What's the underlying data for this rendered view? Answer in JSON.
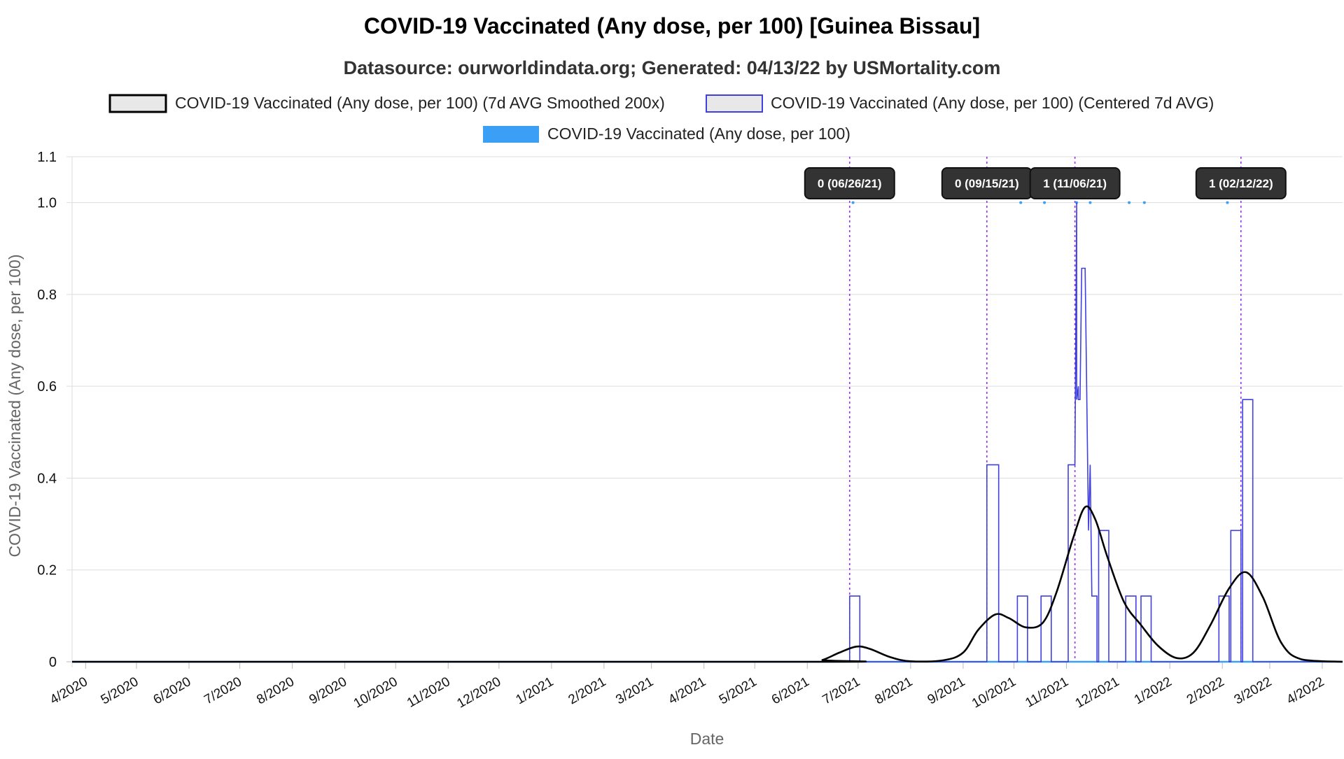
{
  "chart_data": {
    "type": "line",
    "title": "COVID-19 Vaccinated (Any dose, per 100) [Guinea Bissau]",
    "subtitle": "Datasource: ourworldindata.org; Generated: 04/13/22 by USMortality.com",
    "xlabel": "Date",
    "ylabel": "COVID-19 Vaccinated (Any dose, per 100)",
    "ylim": [
      0,
      1.1
    ],
    "yticks": [
      0,
      0.2,
      0.4,
      0.6,
      0.8,
      1.0,
      1.1
    ],
    "ytick_labels": [
      "0",
      "0.2",
      "0.4",
      "0.6",
      "0.8",
      "1.0",
      "1.1"
    ],
    "xlim": [
      "2020-03-24",
      "2022-04-13"
    ],
    "xticks": [
      "2020-04-01",
      "2020-05-01",
      "2020-06-01",
      "2020-07-01",
      "2020-08-01",
      "2020-09-01",
      "2020-10-01",
      "2020-11-01",
      "2020-12-01",
      "2021-01-01",
      "2021-02-01",
      "2021-03-01",
      "2021-04-01",
      "2021-05-01",
      "2021-06-01",
      "2021-07-01",
      "2021-08-01",
      "2021-09-01",
      "2021-10-01",
      "2021-11-01",
      "2021-12-01",
      "2022-01-01",
      "2022-02-01",
      "2022-03-01",
      "2022-04-01"
    ],
    "xtick_labels": [
      "4/2020",
      "5/2020",
      "6/2020",
      "7/2020",
      "8/2020",
      "9/2020",
      "10/2020",
      "11/2020",
      "12/2020",
      "1/2021",
      "2/2021",
      "3/2021",
      "4/2021",
      "5/2021",
      "6/2021",
      "7/2021",
      "8/2021",
      "9/2021",
      "10/2021",
      "11/2021",
      "12/2021",
      "1/2022",
      "2/2022",
      "3/2022",
      "4/2022"
    ],
    "grid": true,
    "legend_position": "top",
    "colors": {
      "smoothed": "#000000",
      "centered": "#4040e0",
      "raw": "#3a9ff5",
      "annotation": "#9b30f0"
    },
    "series": [
      {
        "name": "COVID-19 Vaccinated (Any dose, per 100) (7d AVG Smoothed 200x)",
        "style": "smooth-line",
        "points": [
          [
            "2020-03-24",
            0
          ],
          [
            "2021-06-01",
            0
          ],
          [
            "2021-06-10",
            0.004
          ],
          [
            "2021-06-20",
            0.02
          ],
          [
            "2021-06-30",
            0.033
          ],
          [
            "2021-07-08",
            0.028
          ],
          [
            "2021-07-20",
            0.01
          ],
          [
            "2021-08-01",
            0.001
          ],
          [
            "2021-08-20",
            0.003
          ],
          [
            "2021-09-01",
            0.02
          ],
          [
            "2021-09-10",
            0.07
          ],
          [
            "2021-09-20",
            0.103
          ],
          [
            "2021-09-28",
            0.095
          ],
          [
            "2021-10-08",
            0.075
          ],
          [
            "2021-10-18",
            0.085
          ],
          [
            "2021-10-26",
            0.15
          ],
          [
            "2021-11-05",
            0.27
          ],
          [
            "2021-11-12",
            0.337
          ],
          [
            "2021-11-18",
            0.31
          ],
          [
            "2021-11-25",
            0.23
          ],
          [
            "2021-12-05",
            0.13
          ],
          [
            "2021-12-15",
            0.08
          ],
          [
            "2021-12-25",
            0.035
          ],
          [
            "2022-01-05",
            0.008
          ],
          [
            "2022-01-15",
            0.02
          ],
          [
            "2022-01-25",
            0.08
          ],
          [
            "2022-02-05",
            0.16
          ],
          [
            "2022-02-15",
            0.195
          ],
          [
            "2022-02-25",
            0.14
          ],
          [
            "2022-03-08",
            0.04
          ],
          [
            "2022-03-20",
            0.005
          ],
          [
            "2022-04-13",
            0
          ]
        ]
      },
      {
        "name": "COVID-19 Vaccinated (Any dose, per 100) (Centered 7d AVG)",
        "style": "step",
        "points": [
          [
            "2020-03-24",
            0
          ],
          [
            "2021-06-26",
            0
          ],
          [
            "2021-06-26",
            0.143
          ],
          [
            "2021-07-02",
            0.143
          ],
          [
            "2021-07-02",
            0
          ],
          [
            "2021-09-15",
            0
          ],
          [
            "2021-09-15",
            0.429
          ],
          [
            "2021-09-22",
            0.429
          ],
          [
            "2021-09-22",
            0
          ],
          [
            "2021-10-03",
            0
          ],
          [
            "2021-10-03",
            0.143
          ],
          [
            "2021-10-09",
            0.143
          ],
          [
            "2021-10-09",
            0
          ],
          [
            "2021-10-17",
            0
          ],
          [
            "2021-10-17",
            0.143
          ],
          [
            "2021-10-23",
            0.143
          ],
          [
            "2021-10-23",
            0
          ],
          [
            "2021-11-02",
            0
          ],
          [
            "2021-11-02",
            0.429
          ],
          [
            "2021-11-06",
            0.429
          ],
          [
            "2021-11-07",
            1.0
          ],
          [
            "2021-11-07",
            0.571
          ],
          [
            "2021-11-08",
            0.6
          ],
          [
            "2021-11-08",
            0.571
          ],
          [
            "2021-11-09",
            0.571
          ],
          [
            "2021-11-10",
            0.857
          ],
          [
            "2021-11-12",
            0.857
          ],
          [
            "2021-11-14",
            0.286
          ],
          [
            "2021-11-15",
            0.429
          ],
          [
            "2021-11-16",
            0.143
          ],
          [
            "2021-11-19",
            0.143
          ],
          [
            "2021-11-19",
            0
          ],
          [
            "2021-11-20",
            0
          ],
          [
            "2021-11-20",
            0.286
          ],
          [
            "2021-11-26",
            0.286
          ],
          [
            "2021-11-26",
            0
          ],
          [
            "2021-12-06",
            0
          ],
          [
            "2021-12-06",
            0.143
          ],
          [
            "2021-12-12",
            0.143
          ],
          [
            "2021-12-12",
            0
          ],
          [
            "2021-12-15",
            0
          ],
          [
            "2021-12-15",
            0.143
          ],
          [
            "2021-12-21",
            0.143
          ],
          [
            "2021-12-21",
            0
          ],
          [
            "2022-01-30",
            0
          ],
          [
            "2022-01-30",
            0.143
          ],
          [
            "2022-02-05",
            0.143
          ],
          [
            "2022-02-05",
            0
          ],
          [
            "2022-02-06",
            0
          ],
          [
            "2022-02-06",
            0.286
          ],
          [
            "2022-02-12",
            0.286
          ],
          [
            "2022-02-12",
            0
          ],
          [
            "2022-02-13",
            0
          ],
          [
            "2022-02-13",
            0.571
          ],
          [
            "2022-02-19",
            0.571
          ],
          [
            "2022-02-19",
            0
          ],
          [
            "2022-04-13",
            0
          ]
        ]
      },
      {
        "name": "COVID-19 Vaccinated (Any dose, per 100)",
        "style": "points",
        "x": [
          "2021-06-28",
          "2021-10-05",
          "2021-10-19",
          "2021-11-07",
          "2021-11-15",
          "2021-12-08",
          "2021-12-17",
          "2022-02-04"
        ],
        "y": [
          1,
          1,
          1,
          1,
          1,
          1,
          1,
          1
        ]
      }
    ],
    "annotations": [
      {
        "date": "2021-06-26",
        "label": "0 (06/26/21)"
      },
      {
        "date": "2021-09-15",
        "label": "0 (09/15/21)"
      },
      {
        "date": "2021-11-06",
        "label": "1 (11/06/21)"
      },
      {
        "date": "2022-02-12",
        "label": "1 (02/12/22)"
      }
    ]
  }
}
